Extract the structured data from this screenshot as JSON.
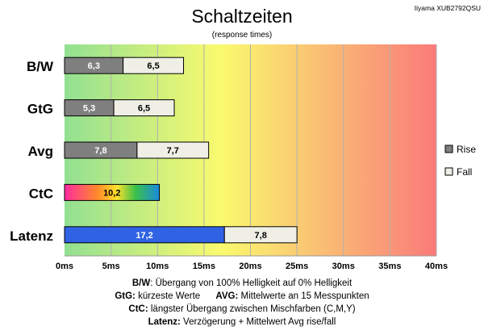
{
  "chart_data": {
    "type": "bar",
    "stacked": true,
    "orientation": "horizontal",
    "title": "Schaltzeiten",
    "subtitle": "(response times)",
    "model": "Iiyama XUB2792QSU",
    "categories": [
      "B/W",
      "GtG",
      "Avg",
      "CtC",
      "Latenz"
    ],
    "series": [
      {
        "name": "Rise",
        "values": [
          6.3,
          5.3,
          7.8,
          null,
          null
        ]
      },
      {
        "name": "Fall",
        "values": [
          6.5,
          6.5,
          7.7,
          null,
          null
        ]
      }
    ],
    "extra_bars": {
      "CtC": {
        "value": 10.2,
        "label": "10,2"
      },
      "Latenz": {
        "values": [
          17.2,
          7.8
        ],
        "labels": [
          "17,2",
          "7,8"
        ]
      }
    },
    "value_labels": {
      "B/W": [
        "6,3",
        "6,5"
      ],
      "GtG": [
        "5,3",
        "6,5"
      ],
      "Avg": [
        "7,8",
        "7,7"
      ]
    },
    "x_ticks": [
      0,
      5,
      10,
      15,
      20,
      25,
      30,
      35,
      40
    ],
    "x_tick_labels": [
      "0ms",
      "5ms",
      "10ms",
      "15ms",
      "20ms",
      "25ms",
      "30ms",
      "35ms",
      "40ms"
    ],
    "xlim": [
      0,
      40
    ],
    "grid": true,
    "legend_position": "right",
    "colors": {
      "rise": "#7f7f7f",
      "fall": "#efefe6",
      "latenz": "#2f63e4",
      "bg_start": "#92e092",
      "bg_mid": "#fafa6e",
      "bg_end": "#fa7a7a"
    }
  },
  "notes": [
    {
      "term": "B/W",
      "text": ":  Übergang von 100% Helligkeit auf 0% Helligkeit"
    },
    {
      "term": "GtG:",
      "text": " kürzeste  Werte",
      "term2": "AVG:",
      "text2": " Mittelwerte  an 15 Messpunkten"
    },
    {
      "term": "CtC:",
      "text": " längster Übergang  zwischen Mischfarben  (C,M,Y)"
    },
    {
      "term": "Latenz:",
      "text": " Verzögerung  + Mittelwert  Avg rise/fall"
    }
  ]
}
